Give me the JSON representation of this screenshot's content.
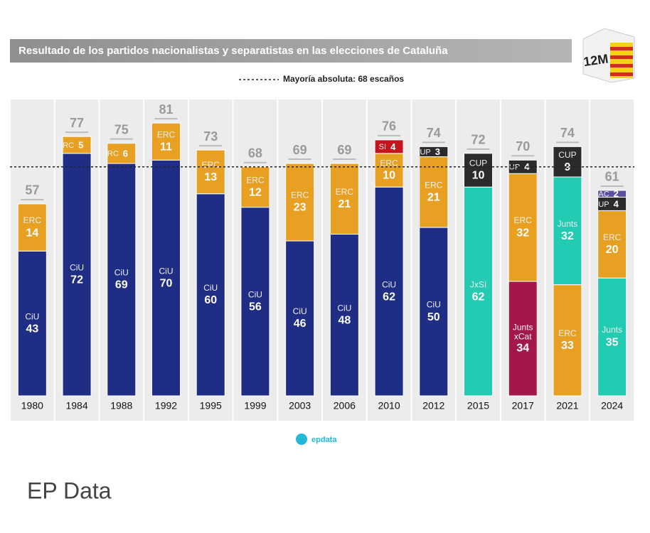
{
  "chart_data": {
    "type": "stacked-bar",
    "title": "Resultado de los partidos nacionalistas y separatistas en las elecciones de Cataluña",
    "badge": "12M",
    "reference_line": {
      "value": 68,
      "label": "Mayoría absoluta: 68 escaños"
    },
    "ylim": [
      0,
      88
    ],
    "bars": [
      {
        "category": "1980",
        "total": 57,
        "segments": [
          {
            "name": "CiU",
            "value": 43,
            "color": "#1f2d85"
          },
          {
            "name": "ERC",
            "value": 14,
            "color": "#e8a023"
          }
        ]
      },
      {
        "category": "1984",
        "total": 77,
        "segments": [
          {
            "name": "CiU",
            "value": 72,
            "color": "#1f2d85"
          },
          {
            "name": "ERC",
            "value": 5,
            "color": "#e8a023"
          }
        ]
      },
      {
        "category": "1988",
        "total": 75,
        "segments": [
          {
            "name": "CiU",
            "value": 69,
            "color": "#1f2d85"
          },
          {
            "name": "ERC",
            "value": 6,
            "color": "#e8a023"
          }
        ]
      },
      {
        "category": "1992",
        "total": 81,
        "segments": [
          {
            "name": "CiU",
            "value": 70,
            "color": "#1f2d85"
          },
          {
            "name": "ERC",
            "value": 11,
            "color": "#e8a023"
          }
        ]
      },
      {
        "category": "1995",
        "total": 73,
        "segments": [
          {
            "name": "CiU",
            "value": 60,
            "color": "#1f2d85"
          },
          {
            "name": "ERC",
            "value": 13,
            "color": "#e8a023"
          }
        ]
      },
      {
        "category": "1999",
        "total": 68,
        "segments": [
          {
            "name": "CiU",
            "value": 56,
            "color": "#1f2d85"
          },
          {
            "name": "ERC",
            "value": 12,
            "color": "#e8a023"
          }
        ]
      },
      {
        "category": "2003",
        "total": 69,
        "segments": [
          {
            "name": "CiU",
            "value": 46,
            "color": "#1f2d85"
          },
          {
            "name": "ERC",
            "value": 23,
            "color": "#e8a023"
          }
        ]
      },
      {
        "category": "2006",
        "total": 69,
        "segments": [
          {
            "name": "CiU",
            "value": 48,
            "color": "#1f2d85"
          },
          {
            "name": "ERC",
            "value": 21,
            "color": "#e8a023"
          }
        ]
      },
      {
        "category": "2010",
        "total": 76,
        "segments": [
          {
            "name": "CiU",
            "value": 62,
            "color": "#1f2d85"
          },
          {
            "name": "ERC",
            "value": 10,
            "color": "#e8a023"
          },
          {
            "name": "SI",
            "value": 4,
            "color": "#c4141d"
          }
        ]
      },
      {
        "category": "2012",
        "total": 74,
        "segments": [
          {
            "name": "CiU",
            "value": 50,
            "color": "#1f2d85"
          },
          {
            "name": "ERC",
            "value": 21,
            "color": "#e8a023"
          },
          {
            "name": "CUP",
            "value": 3,
            "color": "#2b2b2b"
          }
        ]
      },
      {
        "category": "2015",
        "total": 72,
        "segments": [
          {
            "name": "JxSí",
            "value": 62,
            "color": "#22cbb2"
          },
          {
            "name": "CUP",
            "value": 10,
            "color": "#2b2b2b"
          }
        ]
      },
      {
        "category": "2017",
        "total": 70,
        "segments": [
          {
            "name": "Junts xCat",
            "value": 34,
            "color": "#a2184b"
          },
          {
            "name": "ERC",
            "value": 32,
            "color": "#e8a023"
          },
          {
            "name": "CUP",
            "value": 4,
            "color": "#2b2b2b"
          }
        ]
      },
      {
        "category": "2021",
        "total": 74,
        "segments": [
          {
            "name": "ERC",
            "value": 33,
            "color": "#e8a023"
          },
          {
            "name": "Junts",
            "value": 32,
            "color": "#22cbb2"
          },
          {
            "name": "CUP",
            "value": 9,
            "color": "#2b2b2b"
          }
        ]
      },
      {
        "category": "2024",
        "total": 61,
        "segments": [
          {
            "name": "Junts",
            "value": 35,
            "color": "#22cbb2"
          },
          {
            "name": "ERC",
            "value": 20,
            "color": "#e8a023"
          },
          {
            "name": "CUP",
            "value": 4,
            "color": "#2b2b2b"
          },
          {
            "name": "AC",
            "value": 2,
            "color": "#5a4fa0"
          }
        ]
      }
    ]
  },
  "footer": {
    "brand": "epdata"
  },
  "caption": "EP Data"
}
